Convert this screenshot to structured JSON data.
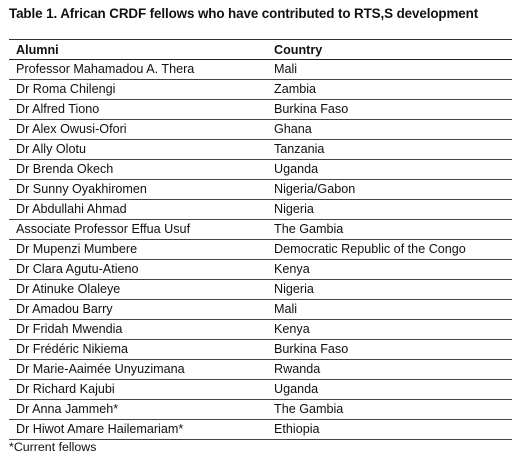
{
  "title": "Table 1. African CRDF fellows who have contributed to RTS,S development",
  "columns": {
    "alumni": "Alumni",
    "country": "Country"
  },
  "rows": [
    {
      "alumni": "Professor Mahamadou A. Thera",
      "country": "Mali"
    },
    {
      "alumni": "Dr Roma Chilengi",
      "country": "Zambia"
    },
    {
      "alumni": "Dr Alfred Tiono",
      "country": "Burkina Faso"
    },
    {
      "alumni": "Dr Alex Owusi-Ofori",
      "country": "Ghana"
    },
    {
      "alumni": "Dr Ally Olotu",
      "country": "Tanzania"
    },
    {
      "alumni": "Dr Brenda Okech",
      "country": "Uganda"
    },
    {
      "alumni": "Dr Sunny Oyakhiromen",
      "country": "Nigeria/Gabon"
    },
    {
      "alumni": "Dr Abdullahi Ahmad",
      "country": "Nigeria"
    },
    {
      "alumni": "Associate Professor Effua Usuf",
      "country": "The Gambia"
    },
    {
      "alumni": "Dr Mupenzi Mumbere",
      "country": "Democratic Republic of the Congo"
    },
    {
      "alumni": "Dr Clara Agutu-Atieno",
      "country": "Kenya"
    },
    {
      "alumni": "Dr Atinuke Olaleye",
      "country": "Nigeria"
    },
    {
      "alumni": "Dr Amadou Barry",
      "country": "Mali"
    },
    {
      "alumni": "Dr Fridah Mwendia",
      "country": "Kenya"
    },
    {
      "alumni": "Dr Frédéric Nikiema",
      "country": "Burkina Faso"
    },
    {
      "alumni": "Dr Marie-Aaimée Unyuzimana",
      "country": "Rwanda"
    },
    {
      "alumni": "Dr Richard Kajubi",
      "country": "Uganda"
    },
    {
      "alumni": "Dr Anna Jammeh*",
      "country": "The Gambia"
    },
    {
      "alumni": "Dr Hiwot Amare Hailemariam*",
      "country": "Ethiopia"
    }
  ],
  "footnote": "*Current fellows"
}
